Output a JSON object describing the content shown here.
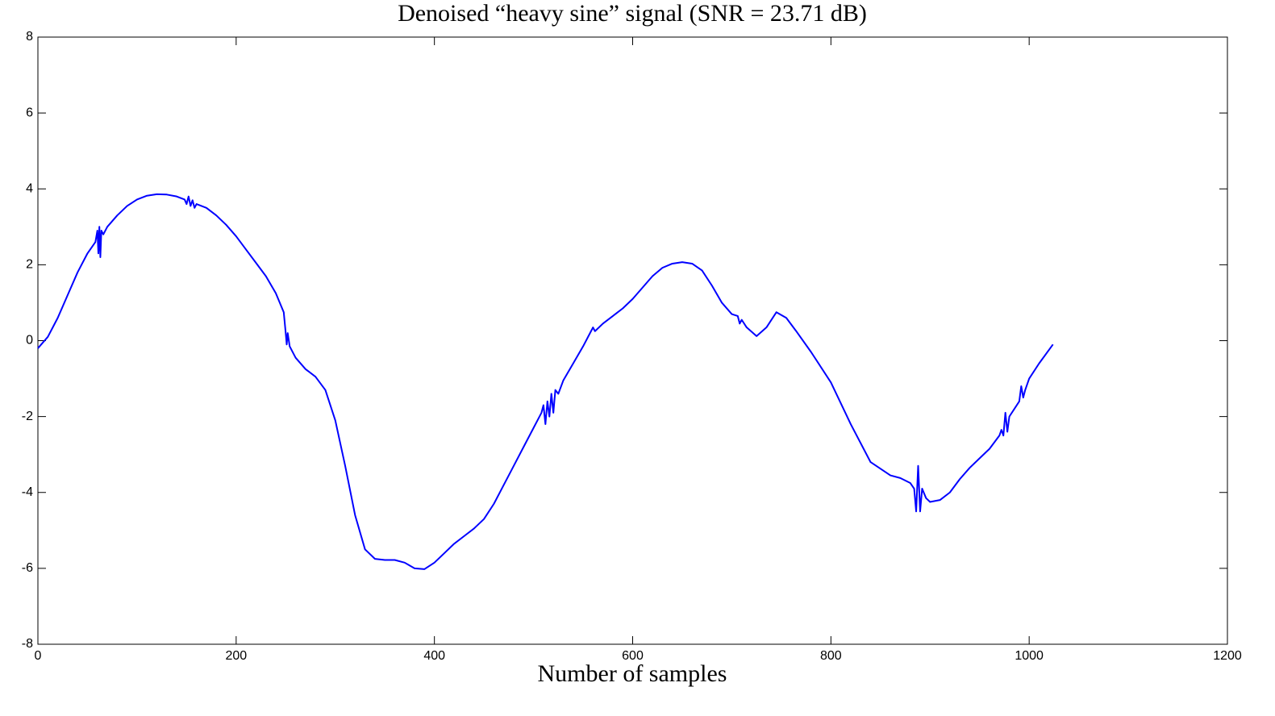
{
  "chart_data": {
    "type": "line",
    "title": "Denoised “heavy sine” signal (SNR = 23.71 dB)",
    "x_label": "Number of samples",
    "xlim": [
      0,
      1200
    ],
    "xticks": [
      0,
      200,
      400,
      600,
      800,
      1000,
      1200
    ],
    "ylim": [
      -8,
      8
    ],
    "yticks": [
      -8,
      -6,
      -4,
      -2,
      0,
      2,
      4,
      6,
      8
    ],
    "series": [
      {
        "color": "#0000ff",
        "x": [
          0,
          10,
          20,
          30,
          40,
          50,
          58,
          60,
          61,
          62,
          63,
          64,
          66,
          70,
          80,
          90,
          100,
          110,
          120,
          130,
          140,
          148,
          150,
          152,
          154,
          156,
          158,
          160,
          170,
          180,
          190,
          200,
          210,
          220,
          230,
          240,
          248,
          250,
          251,
          252,
          254,
          260,
          270,
          280,
          290,
          300,
          310,
          320,
          330,
          340,
          350,
          360,
          370,
          380,
          390,
          400,
          410,
          420,
          430,
          440,
          450,
          460,
          470,
          480,
          490,
          500,
          508,
          510,
          512,
          514,
          516,
          518,
          520,
          522,
          525,
          530,
          540,
          550,
          558,
          560,
          562,
          570,
          580,
          590,
          600,
          610,
          620,
          630,
          640,
          650,
          660,
          670,
          680,
          690,
          700,
          706,
          708,
          710,
          715,
          725,
          735,
          745,
          755,
          765,
          780,
          800,
          820,
          840,
          860,
          870,
          880,
          884,
          886,
          888,
          890,
          892,
          896,
          900,
          910,
          920,
          930,
          940,
          950,
          960,
          970,
          972,
          974,
          976,
          978,
          980,
          990,
          992,
          994,
          996,
          1000,
          1010,
          1024
        ],
        "values": [
          -0.2,
          0.1,
          0.6,
          1.2,
          1.8,
          2.3,
          2.6,
          2.9,
          2.3,
          3.0,
          2.2,
          2.9,
          2.8,
          3.0,
          3.3,
          3.55,
          3.72,
          3.82,
          3.86,
          3.85,
          3.8,
          3.72,
          3.6,
          3.8,
          3.55,
          3.7,
          3.5,
          3.6,
          3.5,
          3.3,
          3.05,
          2.75,
          2.4,
          2.05,
          1.7,
          1.25,
          0.75,
          0.2,
          -0.1,
          0.2,
          -0.15,
          -0.45,
          -0.75,
          -0.95,
          -1.3,
          -2.1,
          -3.3,
          -4.6,
          -5.5,
          -5.75,
          -5.78,
          -5.78,
          -5.85,
          -6.0,
          -6.02,
          -5.85,
          -5.6,
          -5.35,
          -5.15,
          -4.95,
          -4.7,
          -4.3,
          -3.8,
          -3.3,
          -2.8,
          -2.3,
          -1.9,
          -1.7,
          -2.2,
          -1.6,
          -2.0,
          -1.4,
          -1.9,
          -1.3,
          -1.4,
          -1.05,
          -0.6,
          -0.15,
          0.25,
          0.35,
          0.25,
          0.45,
          0.65,
          0.85,
          1.1,
          1.4,
          1.7,
          1.92,
          2.03,
          2.07,
          2.03,
          1.85,
          1.45,
          1.0,
          0.7,
          0.65,
          0.45,
          0.55,
          0.35,
          0.12,
          0.35,
          0.75,
          0.6,
          0.25,
          -0.3,
          -1.1,
          -2.2,
          -3.2,
          -3.55,
          -3.62,
          -3.75,
          -3.9,
          -4.5,
          -3.3,
          -4.5,
          -3.9,
          -4.15,
          -4.25,
          -4.2,
          -4.0,
          -3.65,
          -3.35,
          -3.1,
          -2.85,
          -2.5,
          -2.35,
          -2.5,
          -1.9,
          -2.4,
          -2.0,
          -1.6,
          -1.2,
          -1.5,
          -1.3,
          -1.0,
          -0.6,
          -0.1
        ]
      }
    ]
  }
}
